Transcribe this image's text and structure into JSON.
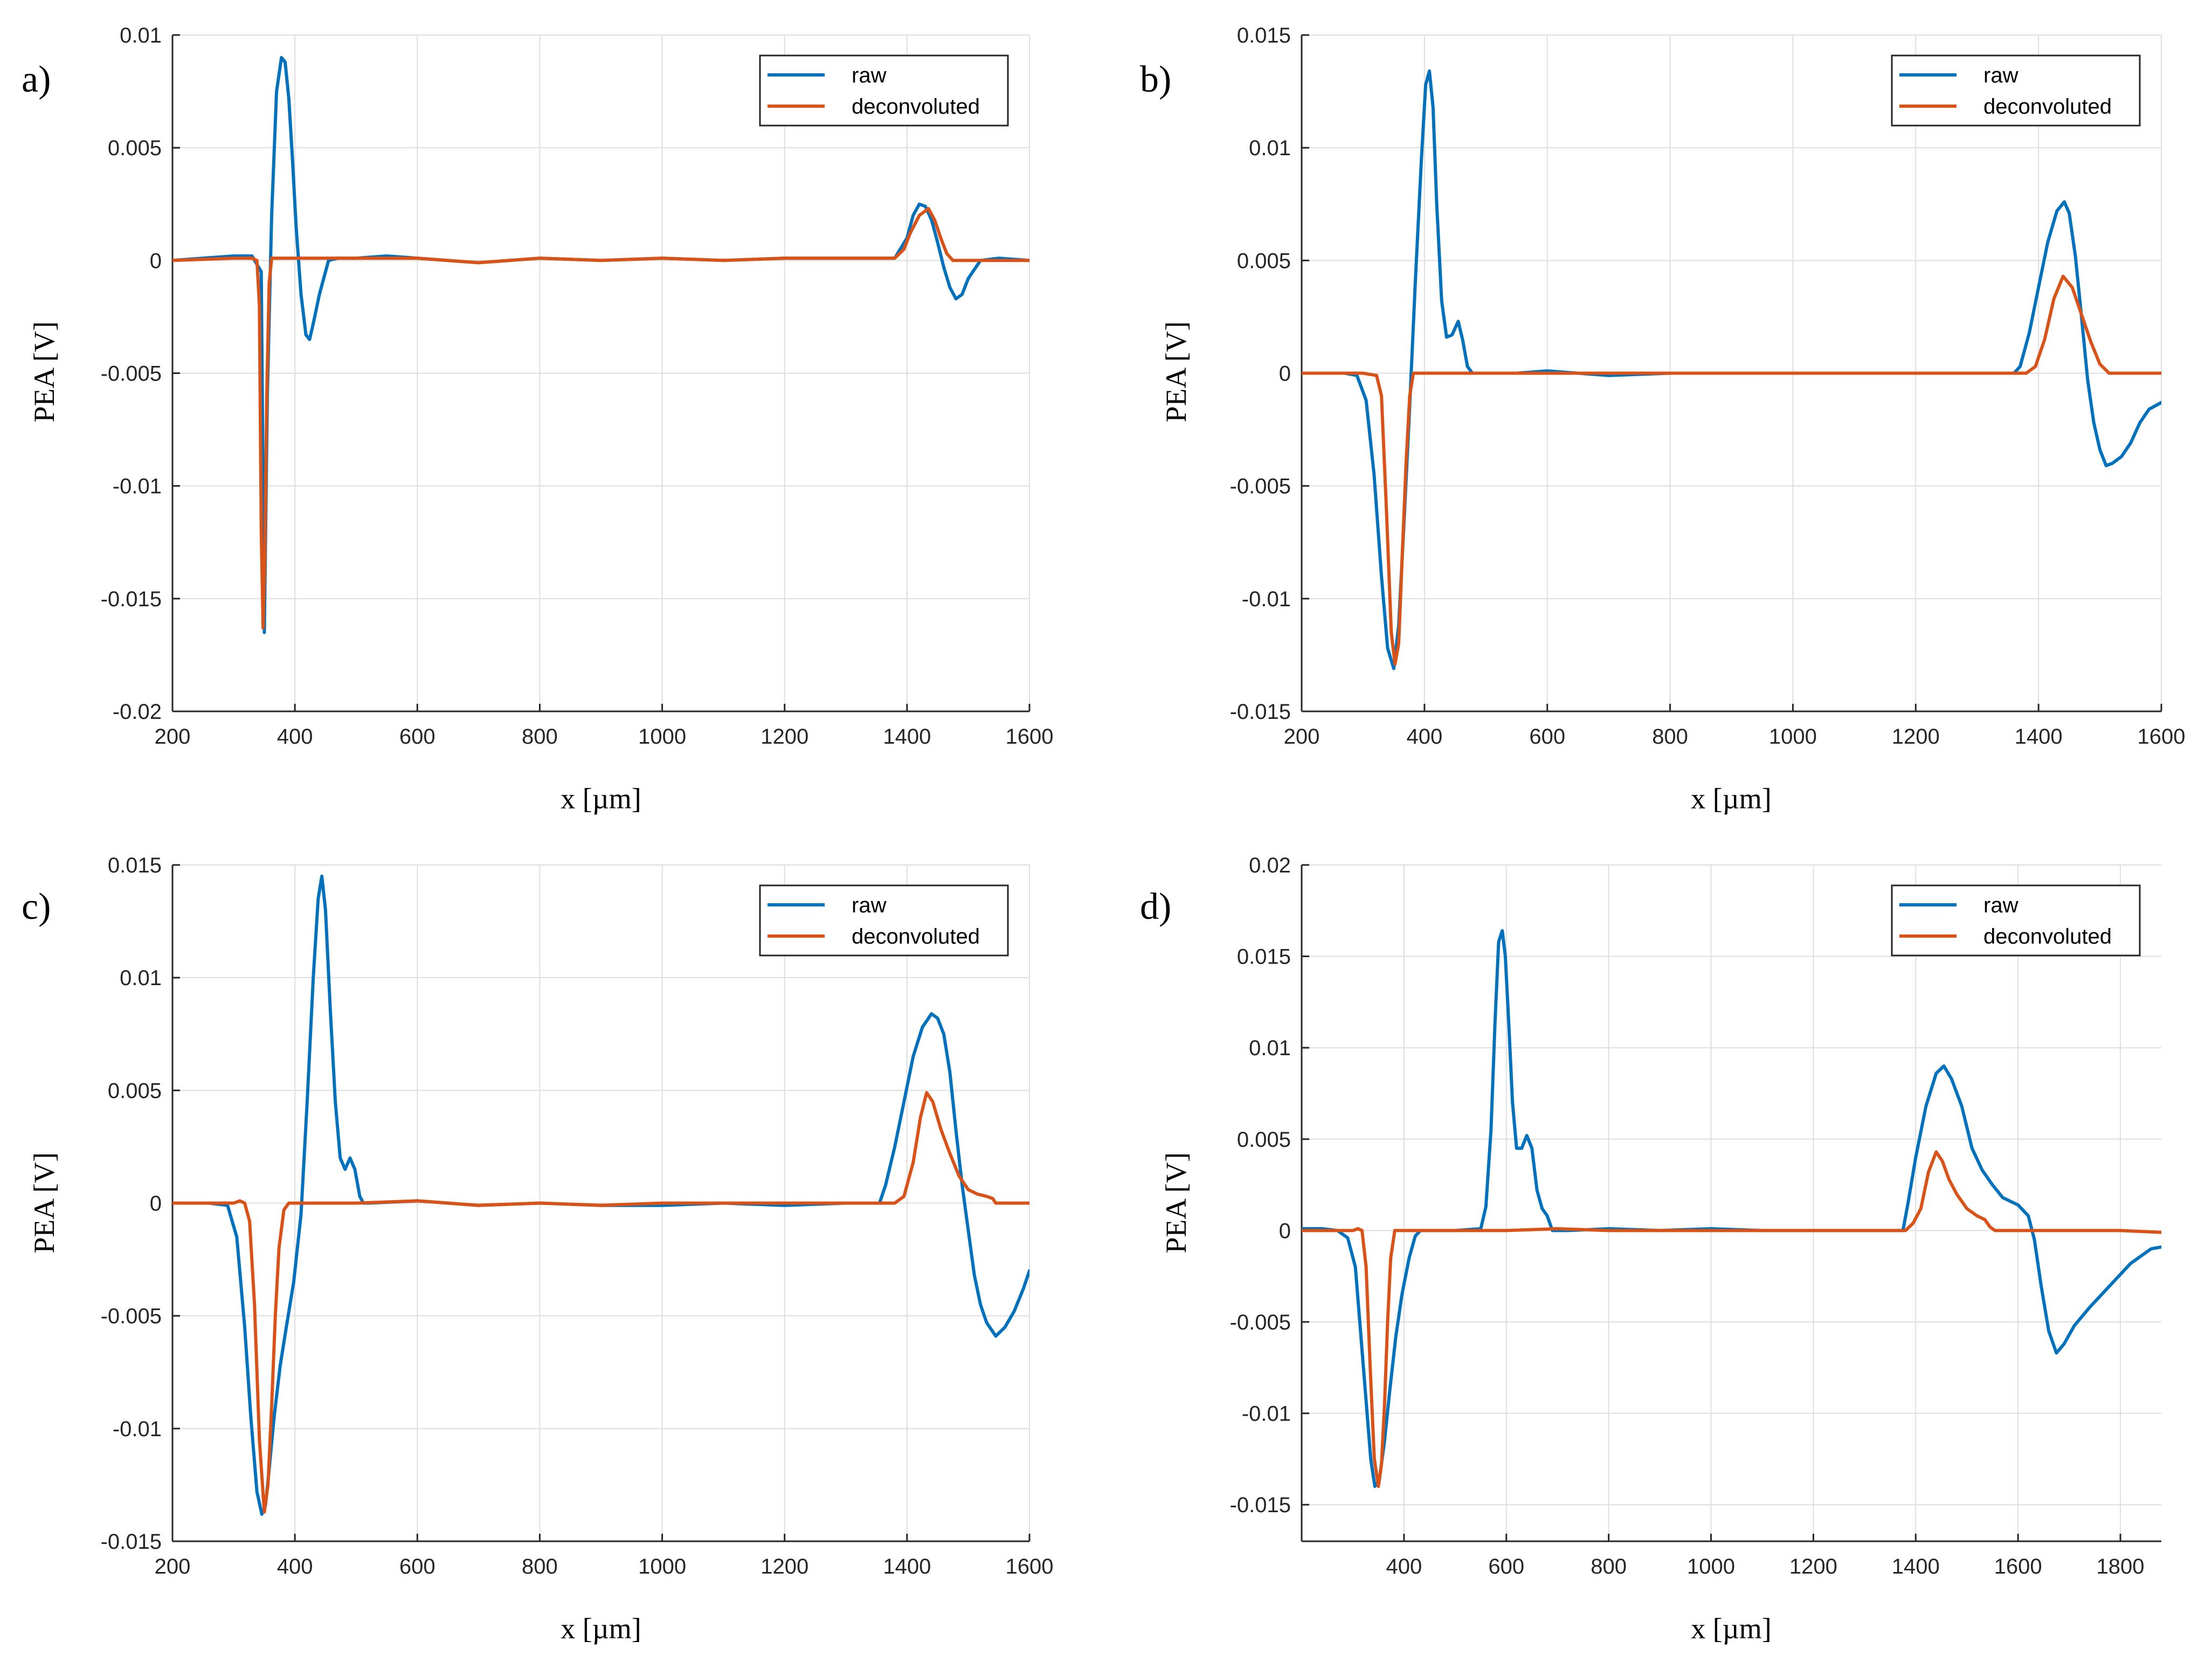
{
  "figure": {
    "series_colors": {
      "raw": "#0072BD",
      "deconvoluted": "#D95319"
    },
    "grid_color": "#dedede",
    "axis_color": "#262626"
  },
  "chart_data": [
    {
      "type": "line",
      "panel_label": "a)",
      "xlabel": "x [µm]",
      "ylabel": "PEA [V]",
      "xlim": [
        200,
        1600
      ],
      "ylim": [
        -0.02,
        0.01
      ],
      "xticks": [
        200,
        400,
        600,
        800,
        1000,
        1200,
        1400,
        1600
      ],
      "xtick_labels": [
        "200",
        "400",
        "600",
        "800",
        "1000",
        "1200",
        "1400",
        "1600"
      ],
      "yticks": [
        -0.02,
        -0.015,
        -0.01,
        -0.005,
        0,
        0.005,
        0.01
      ],
      "ytick_labels": [
        "-0.02",
        "-0.015",
        "-0.01",
        "-0.005",
        "0",
        "0.005",
        "0.01"
      ],
      "grid": true,
      "legend": {
        "position": "top-right",
        "entries": [
          "raw",
          "deconvoluted"
        ]
      },
      "series": [
        {
          "name": "raw",
          "x": [
            200,
            250,
            300,
            330,
            345,
            350,
            355,
            362,
            370,
            378,
            384,
            390,
            396,
            402,
            410,
            418,
            424,
            430,
            440,
            455,
            470,
            500,
            550,
            600,
            700,
            800,
            900,
            1000,
            1100,
            1200,
            1300,
            1380,
            1400,
            1410,
            1420,
            1430,
            1440,
            1450,
            1460,
            1470,
            1480,
            1490,
            1500,
            1520,
            1550,
            1600
          ],
          "y": [
            0,
            0.0001,
            0.0002,
            0.0002,
            -0.0005,
            -0.0165,
            -0.006,
            0.002,
            0.0075,
            0.009,
            0.0088,
            0.0072,
            0.0045,
            0.0015,
            -0.0015,
            -0.0033,
            -0.0035,
            -0.0028,
            -0.0015,
            0,
            0.0001,
            0.0001,
            0.0002,
            0.0001,
            -0.0001,
            0.0001,
            0,
            0.0001,
            0,
            0.0001,
            0.0001,
            0.0001,
            0.001,
            0.002,
            0.0025,
            0.0024,
            0.0018,
            0.0008,
            -0.0003,
            -0.0012,
            -0.0017,
            -0.0015,
            -0.0008,
            0,
            0.0001,
            0
          ]
        },
        {
          "name": "deconvoluted",
          "x": [
            200,
            300,
            330,
            338,
            342,
            345,
            348,
            351,
            354,
            358,
            362,
            370,
            400,
            500,
            600,
            700,
            800,
            900,
            1000,
            1100,
            1200,
            1300,
            1380,
            1395,
            1405,
            1420,
            1435,
            1445,
            1455,
            1465,
            1475,
            1500,
            1600
          ],
          "y": [
            0,
            0.0001,
            0.0001,
            0,
            -0.002,
            -0.012,
            -0.0163,
            -0.013,
            -0.006,
            -0.001,
            0.0001,
            0.0001,
            0.0001,
            0.0001,
            0.0001,
            -0.0001,
            0.0001,
            0,
            0.0001,
            0,
            0.0001,
            0.0001,
            0.0001,
            0.0005,
            0.0012,
            0.002,
            0.0023,
            0.0018,
            0.001,
            0.0003,
            0,
            0,
            0
          ]
        }
      ]
    },
    {
      "type": "line",
      "panel_label": "b)",
      "xlabel": "x [µm]",
      "ylabel": "PEA [V]",
      "xlim": [
        200,
        1600
      ],
      "ylim": [
        -0.015,
        0.015
      ],
      "xticks": [
        200,
        400,
        600,
        800,
        1000,
        1200,
        1400,
        1600
      ],
      "xtick_labels": [
        "200",
        "400",
        "600",
        "800",
        "1000",
        "1200",
        "1400",
        "1600"
      ],
      "yticks": [
        -0.015,
        -0.01,
        -0.005,
        0,
        0.005,
        0.01,
        0.015
      ],
      "ytick_labels": [
        "-0.015",
        "-0.01",
        "-0.005",
        "0",
        "0.005",
        "0.01",
        "0.015"
      ],
      "grid": true,
      "legend": {
        "position": "top-right",
        "entries": [
          "raw",
          "deconvoluted"
        ]
      },
      "series": [
        {
          "name": "raw",
          "x": [
            200,
            240,
            270,
            290,
            305,
            318,
            330,
            340,
            350,
            358,
            366,
            375,
            385,
            395,
            402,
            408,
            414,
            420,
            428,
            436,
            445,
            455,
            462,
            470,
            478,
            484,
            500,
            550,
            600,
            700,
            800,
            900,
            1000,
            1100,
            1200,
            1300,
            1360,
            1370,
            1385,
            1400,
            1415,
            1430,
            1442,
            1450,
            1460,
            1470,
            1480,
            1490,
            1500,
            1510,
            1520,
            1535,
            1550,
            1565,
            1580,
            1600
          ],
          "y": [
            0,
            0,
            0,
            -0.0001,
            -0.0012,
            -0.0045,
            -0.009,
            -0.0122,
            -0.0131,
            -0.0112,
            -0.007,
            -0.002,
            0.004,
            0.0095,
            0.0128,
            0.0134,
            0.0118,
            0.0075,
            0.0032,
            0.0016,
            0.0017,
            0.0023,
            0.0015,
            0.0003,
            0,
            0,
            0,
            0,
            0.0001,
            -0.0001,
            0,
            0,
            0,
            0,
            0,
            0,
            0,
            0.0003,
            0.0018,
            0.0038,
            0.0058,
            0.0072,
            0.0076,
            0.0071,
            0.0052,
            0.0025,
            -0.0003,
            -0.0022,
            -0.0034,
            -0.0041,
            -0.004,
            -0.0037,
            -0.0031,
            -0.0022,
            -0.0016,
            -0.0013
          ]
        },
        {
          "name": "deconvoluted",
          "x": [
            200,
            300,
            322,
            330,
            338,
            346,
            352,
            358,
            364,
            370,
            376,
            382,
            400,
            500,
            600,
            700,
            800,
            900,
            1000,
            1100,
            1200,
            1300,
            1380,
            1395,
            1410,
            1425,
            1440,
            1455,
            1470,
            1485,
            1500,
            1515,
            1600
          ],
          "y": [
            0,
            0,
            -0.0001,
            -0.001,
            -0.006,
            -0.0115,
            -0.0129,
            -0.012,
            -0.008,
            -0.004,
            -0.001,
            0,
            0,
            0,
            0,
            0,
            0,
            0,
            0,
            0,
            0,
            0,
            0,
            0.0003,
            0.0015,
            0.0033,
            0.0043,
            0.0038,
            0.0026,
            0.0014,
            0.0004,
            0,
            0
          ]
        }
      ]
    },
    {
      "type": "line",
      "panel_label": "c)",
      "xlabel": "x [µm]",
      "ylabel": "PEA [V]",
      "xlim": [
        200,
        1600
      ],
      "ylim": [
        -0.015,
        0.015
      ],
      "xticks": [
        200,
        400,
        600,
        800,
        1000,
        1200,
        1400,
        1600
      ],
      "xtick_labels": [
        "200",
        "400",
        "600",
        "800",
        "1000",
        "1200",
        "1400",
        "1600"
      ],
      "yticks": [
        -0.015,
        -0.01,
        -0.005,
        0,
        0.005,
        0.01,
        0.015
      ],
      "ytick_labels": [
        "-0.015",
        "-0.01",
        "-0.005",
        "0",
        "0.005",
        "0.01",
        "0.015"
      ],
      "grid": true,
      "legend": {
        "position": "top-right",
        "entries": [
          "raw",
          "deconvoluted"
        ]
      },
      "series": [
        {
          "name": "raw",
          "x": [
            200,
            260,
            290,
            305,
            318,
            328,
            338,
            346,
            352,
            358,
            366,
            376,
            386,
            398,
            410,
            420,
            430,
            438,
            444,
            450,
            458,
            466,
            474,
            482,
            490,
            498,
            506,
            512,
            520,
            600,
            700,
            800,
            900,
            1000,
            1100,
            1200,
            1300,
            1355,
            1365,
            1380,
            1395,
            1410,
            1425,
            1440,
            1450,
            1460,
            1470,
            1480,
            1490,
            1500,
            1510,
            1520,
            1530,
            1545,
            1560,
            1575,
            1590,
            1600
          ],
          "y": [
            0,
            0,
            -0.0001,
            -0.0015,
            -0.0055,
            -0.0095,
            -0.0128,
            -0.0138,
            -0.0134,
            -0.0118,
            -0.0095,
            -0.0072,
            -0.0055,
            -0.0035,
            -0.0005,
            0.0045,
            0.01,
            0.0135,
            0.0145,
            0.013,
            0.0085,
            0.0045,
            0.002,
            0.0015,
            0.002,
            0.0015,
            0.0003,
            0,
            0,
            0.0001,
            -0.0001,
            0,
            -0.0001,
            -0.0001,
            0,
            -0.0001,
            0,
            0,
            0.0008,
            0.0025,
            0.0045,
            0.0065,
            0.0078,
            0.0084,
            0.0082,
            0.0075,
            0.0058,
            0.0032,
            0.0008,
            -0.0012,
            -0.0032,
            -0.0045,
            -0.0053,
            -0.0059,
            -0.0055,
            -0.0048,
            -0.0038,
            -0.003
          ]
        },
        {
          "name": "deconvoluted",
          "x": [
            200,
            300,
            310,
            318,
            326,
            334,
            342,
            350,
            356,
            362,
            368,
            374,
            382,
            390,
            400,
            500,
            600,
            700,
            800,
            900,
            1000,
            1100,
            1200,
            1300,
            1380,
            1395,
            1410,
            1422,
            1432,
            1442,
            1455,
            1470,
            1485,
            1500,
            1515,
            1530,
            1540,
            1545,
            1600
          ],
          "y": [
            0,
            0,
            0.0001,
            0,
            -0.0008,
            -0.0045,
            -0.0105,
            -0.0137,
            -0.0125,
            -0.009,
            -0.005,
            -0.002,
            -0.0003,
            0,
            0,
            0,
            0.0001,
            -0.0001,
            0,
            -0.0001,
            0,
            0,
            0,
            0,
            0,
            0.0003,
            0.0018,
            0.0038,
            0.0049,
            0.0045,
            0.0033,
            0.0022,
            0.0012,
            0.0006,
            0.0004,
            0.0003,
            0.0002,
            0,
            0
          ]
        }
      ]
    },
    {
      "type": "line",
      "panel_label": "d)",
      "xlabel": "x [µm]",
      "ylabel": "PEA [V]",
      "xlim": [
        200,
        1880
      ],
      "ylim": [
        -0.017,
        0.02
      ],
      "xticks": [
        400,
        600,
        800,
        1000,
        1200,
        1400,
        1600,
        1800
      ],
      "xtick_labels": [
        "400",
        "600",
        "800",
        "1000",
        "1200",
        "1400",
        "1600",
        "1800"
      ],
      "yticks": [
        -0.015,
        -0.01,
        -0.005,
        0,
        0.005,
        0.01,
        0.015,
        0.02
      ],
      "ytick_labels": [
        "-0.015",
        "-0.01",
        "-0.005",
        "0",
        "0.005",
        "0.01",
        "0.015",
        "0.02"
      ],
      "grid": true,
      "legend": {
        "position": "top-right",
        "entries": [
          "raw",
          "deconvoluted"
        ]
      },
      "series": [
        {
          "name": "raw",
          "x": [
            200,
            240,
            270,
            290,
            305,
            315,
            325,
            335,
            343,
            352,
            362,
            372,
            384,
            396,
            410,
            422,
            432,
            450,
            500,
            550,
            560,
            570,
            578,
            585,
            592,
            598,
            605,
            612,
            620,
            630,
            640,
            650,
            660,
            670,
            680,
            690,
            720,
            800,
            900,
            1000,
            1100,
            1200,
            1300,
            1375,
            1385,
            1400,
            1420,
            1440,
            1455,
            1470,
            1490,
            1510,
            1530,
            1550,
            1570,
            1600,
            1620,
            1632,
            1645,
            1660,
            1675,
            1690,
            1710,
            1740,
            1780,
            1820,
            1860,
            1880
          ],
          "y": [
            0.0001,
            0.0001,
            0,
            -0.0004,
            -0.002,
            -0.0055,
            -0.009,
            -0.0125,
            -0.014,
            -0.0136,
            -0.0115,
            -0.0088,
            -0.0058,
            -0.0035,
            -0.0015,
            -0.0003,
            0,
            0,
            0,
            0.0001,
            0.0013,
            0.0055,
            0.0115,
            0.0158,
            0.0164,
            0.015,
            0.0112,
            0.007,
            0.0045,
            0.0045,
            0.0052,
            0.0045,
            0.0022,
            0.0012,
            0.0008,
            0,
            0,
            0.0001,
            0,
            0.0001,
            0,
            0,
            0,
            0,
            0.0015,
            0.004,
            0.0068,
            0.0086,
            0.009,
            0.0083,
            0.0068,
            0.0045,
            0.0033,
            0.0025,
            0.0018,
            0.0014,
            0.0008,
            -0.0005,
            -0.003,
            -0.0055,
            -0.0067,
            -0.0062,
            -0.0052,
            -0.0042,
            -0.003,
            -0.0018,
            -0.001,
            -0.0009
          ]
        },
        {
          "name": "deconvoluted",
          "x": [
            200,
            300,
            310,
            318,
            326,
            334,
            342,
            350,
            356,
            362,
            368,
            374,
            382,
            400,
            500,
            600,
            700,
            800,
            900,
            1000,
            1100,
            1200,
            1300,
            1380,
            1395,
            1410,
            1425,
            1440,
            1452,
            1465,
            1480,
            1500,
            1520,
            1535,
            1545,
            1555,
            1600,
            1700,
            1800,
            1880
          ],
          "y": [
            0,
            0,
            0.0001,
            0,
            -0.002,
            -0.0075,
            -0.0125,
            -0.014,
            -0.0128,
            -0.0095,
            -0.005,
            -0.0015,
            0,
            0,
            0,
            0,
            0.0001,
            0,
            0,
            0,
            0,
            0,
            0,
            0,
            0.0004,
            0.0012,
            0.0032,
            0.0043,
            0.0038,
            0.0028,
            0.002,
            0.0012,
            0.0008,
            0.0006,
            0.0002,
            0,
            0,
            0,
            0,
            -0.0001
          ]
        }
      ]
    }
  ]
}
